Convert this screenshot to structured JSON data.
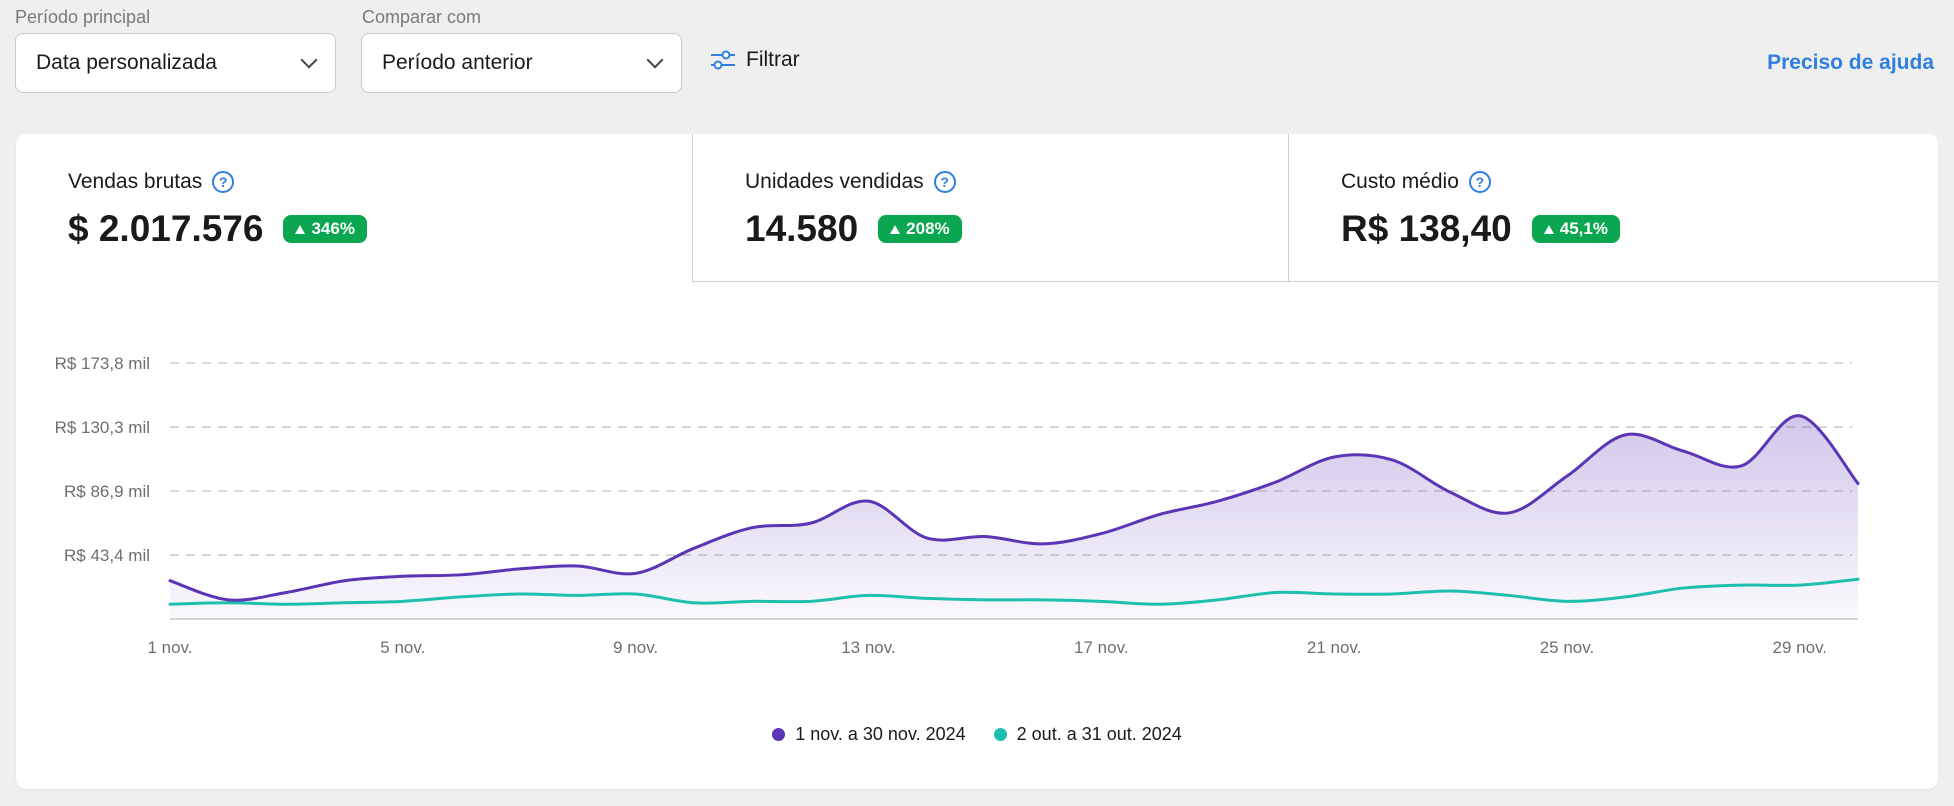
{
  "filters": {
    "primary_label": "Período principal",
    "primary_value": "Data personalizada",
    "compare_label": "Comparar com",
    "compare_value": "Período anterior",
    "filter_label": "Filtrar",
    "help_label": "Preciso de ajuda"
  },
  "metrics": [
    {
      "title": "Vendas brutas",
      "value": "$ 2.017.576",
      "change": "346%"
    },
    {
      "title": "Unidades vendidas",
      "value": "14.580",
      "change": "208%"
    },
    {
      "title": "Custo médio",
      "value": "R$ 138,40",
      "change": "45,1%"
    }
  ],
  "colors": {
    "primary": "#5b35b5",
    "secondary": "#1fbfae",
    "positive": "#0aa650",
    "link": "#2f7fe0"
  },
  "chart_data": {
    "type": "area",
    "x": [
      1,
      2,
      3,
      4,
      5,
      6,
      7,
      8,
      9,
      10,
      11,
      12,
      13,
      14,
      15,
      16,
      17,
      18,
      19,
      20,
      21,
      22,
      23,
      24,
      25,
      26,
      27,
      28,
      29,
      30
    ],
    "x_ticks": [
      1,
      5,
      9,
      13,
      17,
      21,
      25,
      29
    ],
    "xtick_labels": [
      "1 nov.",
      "5 nov.",
      "9 nov.",
      "13 nov.",
      "17 nov.",
      "21 nov.",
      "25 nov.",
      "29 nov."
    ],
    "y_ticks": [
      43.4,
      86.9,
      130.3,
      173.8
    ],
    "ytick_labels": [
      "R$ 43,4 mil",
      "R$ 86,9 mil",
      "R$ 130,3 mil",
      "R$ 173,8 mil"
    ],
    "ylim": [
      0,
      173.8
    ],
    "grid": true,
    "legend_position": "bottom",
    "series": [
      {
        "name": "1 nov. a 30 nov. 2024",
        "values": [
          26,
          13,
          18,
          26,
          29,
          30,
          34,
          36,
          31,
          48,
          62,
          65,
          80,
          55,
          56,
          51,
          58,
          71,
          80,
          93,
          110,
          108,
          86,
          72,
          97,
          125,
          114,
          104,
          138,
          92
        ]
      },
      {
        "name": "2 out. a 31 out. 2024",
        "values": [
          10,
          11,
          10,
          11,
          12,
          15,
          17,
          16,
          17,
          11,
          12,
          12,
          16,
          14,
          13,
          13,
          12,
          10,
          13,
          18,
          17,
          17,
          19,
          16,
          12,
          15,
          21,
          23,
          23,
          27
        ]
      }
    ]
  }
}
